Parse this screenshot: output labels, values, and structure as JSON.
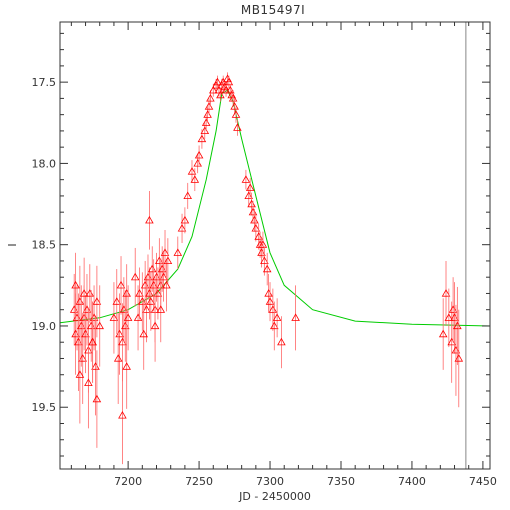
{
  "chart_data": {
    "type": "scatter",
    "title": "MB15497I",
    "xlabel": "JD - 2450000",
    "ylabel": "I",
    "xlim": [
      7152,
      7455
    ],
    "ylim": [
      19.88,
      17.13
    ],
    "y_inverted": true,
    "xticks": [
      7200,
      7250,
      7300,
      7350,
      7400,
      7450
    ],
    "xtick_labels": [
      "7200",
      "7250",
      "7300",
      "7350",
      "7400",
      "7450"
    ],
    "yticks": [
      17.5,
      18.0,
      18.5,
      19.0,
      19.5
    ],
    "ytick_labels": [
      "17.5",
      "18.0",
      "18.5",
      "19.0",
      "19.5"
    ],
    "grid": false,
    "vertical_line_x": 7438,
    "colors": {
      "points": "#ff0000",
      "errorbars": "#ff6666",
      "model": "#00cc00",
      "frame": "#333333",
      "vline": "#888888"
    },
    "model": {
      "name": "",
      "x": [
        7152,
        7180,
        7200,
        7220,
        7235,
        7245,
        7255,
        7262,
        7266,
        7270,
        7274,
        7280,
        7290,
        7300,
        7310,
        7330,
        7360,
        7400,
        7455
      ],
      "y": [
        18.98,
        18.95,
        18.9,
        18.8,
        18.65,
        18.45,
        18.1,
        17.8,
        17.57,
        17.55,
        17.62,
        17.85,
        18.2,
        18.55,
        18.75,
        18.9,
        18.97,
        18.99,
        19.0
      ]
    },
    "series": [
      {
        "name": "",
        "marker": "triangle",
        "x": [
          7162,
          7163,
          7164,
          7165,
          7166,
          7167,
          7168,
          7169,
          7170,
          7171,
          7172,
          7173,
          7174,
          7175,
          7176,
          7177,
          7178,
          7180,
          7163,
          7166,
          7169,
          7172,
          7175,
          7178,
          7190,
          7192,
          7194,
          7195,
          7196,
          7197,
          7198,
          7199,
          7200,
          7193,
          7196,
          7199,
          7205,
          7207,
          7208,
          7210,
          7212,
          7213,
          7214,
          7215,
          7216,
          7217,
          7218,
          7219,
          7220,
          7221,
          7222,
          7223,
          7224,
          7225,
          7226,
          7227,
          7228,
          7211,
          7215,
          7219,
          7223,
          7235,
          7238,
          7240,
          7242,
          7245,
          7247,
          7249,
          7250,
          7252,
          7254,
          7255,
          7256,
          7257,
          7258,
          7260,
          7262,
          7263,
          7264,
          7265,
          7266,
          7267,
          7268,
          7269,
          7270,
          7271,
          7272,
          7273,
          7274,
          7275,
          7276,
          7277,
          7283,
          7285,
          7286,
          7287,
          7288,
          7289,
          7290,
          7292,
          7293,
          7294,
          7295,
          7296,
          7298,
          7299,
          7300,
          7302,
          7303,
          7305,
          7308,
          7318,
          7422,
          7424,
          7426,
          7428,
          7429,
          7430,
          7431,
          7432,
          7433
        ],
        "y": [
          18.9,
          19.05,
          18.95,
          19.1,
          18.85,
          19.0,
          19.2,
          18.95,
          19.05,
          18.9,
          19.15,
          18.8,
          19.0,
          19.1,
          18.95,
          19.25,
          18.85,
          19.0,
          18.75,
          19.3,
          18.8,
          19.35,
          19.1,
          19.45,
          18.95,
          18.85,
          19.05,
          18.75,
          19.1,
          18.9,
          19.0,
          18.8,
          18.95,
          19.2,
          19.55,
          19.25,
          18.7,
          18.95,
          18.8,
          18.85,
          18.75,
          18.9,
          18.7,
          18.8,
          18.85,
          18.65,
          18.75,
          18.9,
          18.7,
          18.8,
          18.6,
          18.75,
          18.65,
          18.7,
          18.55,
          18.75,
          18.6,
          19.05,
          18.35,
          19.0,
          18.9,
          18.55,
          18.4,
          18.35,
          18.2,
          18.05,
          18.1,
          18.0,
          17.95,
          17.85,
          17.8,
          17.75,
          17.7,
          17.65,
          17.6,
          17.55,
          17.52,
          17.5,
          17.55,
          17.58,
          17.52,
          17.5,
          17.53,
          17.55,
          17.48,
          17.5,
          17.55,
          17.58,
          17.6,
          17.65,
          17.7,
          17.78,
          18.1,
          18.2,
          18.15,
          18.25,
          18.3,
          18.35,
          18.4,
          18.45,
          18.5,
          18.55,
          18.5,
          18.6,
          18.65,
          18.8,
          18.85,
          18.9,
          19.0,
          18.95,
          19.1,
          18.95,
          19.05,
          18.8,
          18.95,
          19.1,
          18.9,
          18.95,
          19.15,
          19.0,
          19.2
        ],
        "yerr": [
          0.22,
          0.25,
          0.2,
          0.3,
          0.22,
          0.25,
          0.28,
          0.2,
          0.24,
          0.22,
          0.26,
          0.18,
          0.22,
          0.25,
          0.2,
          0.3,
          0.22,
          0.25,
          0.2,
          0.3,
          0.22,
          0.28,
          0.25,
          0.3,
          0.22,
          0.2,
          0.25,
          0.18,
          0.24,
          0.2,
          0.22,
          0.18,
          0.2,
          0.28,
          0.3,
          0.26,
          0.18,
          0.2,
          0.16,
          0.18,
          0.15,
          0.2,
          0.14,
          0.16,
          0.18,
          0.14,
          0.16,
          0.2,
          0.15,
          0.16,
          0.14,
          0.16,
          0.14,
          0.15,
          0.14,
          0.16,
          0.14,
          0.22,
          0.18,
          0.22,
          0.2,
          0.1,
          0.09,
          0.08,
          0.08,
          0.07,
          0.07,
          0.06,
          0.06,
          0.06,
          0.05,
          0.05,
          0.05,
          0.05,
          0.05,
          0.04,
          0.04,
          0.04,
          0.04,
          0.04,
          0.04,
          0.04,
          0.04,
          0.04,
          0.04,
          0.04,
          0.04,
          0.04,
          0.05,
          0.05,
          0.05,
          0.05,
          0.06,
          0.06,
          0.06,
          0.07,
          0.07,
          0.07,
          0.08,
          0.08,
          0.08,
          0.09,
          0.08,
          0.09,
          0.1,
          0.12,
          0.12,
          0.13,
          0.15,
          0.12,
          0.16,
          0.2,
          0.22,
          0.2,
          0.18,
          0.25,
          0.2,
          0.22,
          0.28,
          0.24,
          0.3
        ]
      }
    ]
  }
}
